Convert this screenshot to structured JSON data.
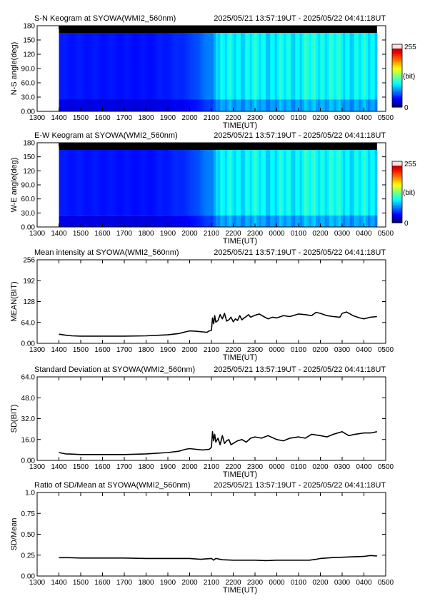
{
  "chart_data": [
    {
      "type": "heatmap",
      "id": "sn",
      "title": "S-N Keogram at SYOWA(WMI2_560nm)",
      "time_range": "2025/05/21 13:57:19UT - 2025/05/22 04:41:18UT",
      "xlabel": "TIME(UT)",
      "ylabel": "N-S angle(deg)",
      "xticks": [
        "1300",
        "1400",
        "1500",
        "1600",
        "1700",
        "1800",
        "1900",
        "2000",
        "2100",
        "2200",
        "2300",
        "0000",
        "0100",
        "0200",
        "0300",
        "0400",
        "0500"
      ],
      "yticks": [
        "0.00",
        "30.0",
        "60.0",
        "90.0",
        "120",
        "150",
        "180"
      ],
      "ylim": [
        0,
        180
      ],
      "data_start_hour": 14.0,
      "data_end_hour": 28.6,
      "colorbar": {
        "min_label": "0",
        "max_label": "255",
        "unit_label": "(bit)",
        "min": 0,
        "max": 255
      },
      "profile": [
        [
          14.0,
          45
        ],
        [
          18.0,
          40
        ],
        [
          19.3,
          50
        ],
        [
          20.0,
          60
        ],
        [
          20.6,
          85
        ],
        [
          21.0,
          95
        ],
        [
          21.2,
          140
        ],
        [
          22.5,
          150
        ],
        [
          24.0,
          145
        ],
        [
          26.0,
          160
        ],
        [
          27.0,
          150
        ],
        [
          28.6,
          145
        ]
      ]
    },
    {
      "type": "heatmap",
      "id": "ew",
      "title": "E-W Keogram at SYOWA(WMI2_560nm)",
      "time_range": "2025/05/21 13:57:19UT - 2025/05/22 04:41:18UT",
      "xlabel": "TIME(UT)",
      "ylabel": "W-E angle(deg)",
      "xticks": [
        "1300",
        "1400",
        "1500",
        "1600",
        "1700",
        "1800",
        "1900",
        "2000",
        "2100",
        "2200",
        "2300",
        "0000",
        "0100",
        "0200",
        "0300",
        "0400",
        "0500"
      ],
      "yticks": [
        "0.00",
        "30.0",
        "60.0",
        "90.0",
        "120",
        "150",
        "180"
      ],
      "ylim": [
        0,
        180
      ],
      "data_start_hour": 14.0,
      "data_end_hour": 28.6,
      "colorbar": {
        "min_label": "0",
        "max_label": "255",
        "unit_label": "(bit)",
        "min": 0,
        "max": 255
      },
      "profile": [
        [
          14.0,
          45
        ],
        [
          18.0,
          40
        ],
        [
          19.3,
          50
        ],
        [
          20.0,
          60
        ],
        [
          20.6,
          85
        ],
        [
          21.0,
          95
        ],
        [
          21.2,
          140
        ],
        [
          22.5,
          150
        ],
        [
          24.0,
          145
        ],
        [
          26.0,
          160
        ],
        [
          27.0,
          150
        ],
        [
          28.6,
          145
        ]
      ]
    },
    {
      "type": "line",
      "id": "mean",
      "title": "Mean intensity at SYOWA(WMI2_560nm)",
      "time_range": "2025/05/21 13:57:19UT - 2025/05/22 04:41:18UT",
      "xlabel": "TIME(UT)",
      "ylabel": "MEAN(BIT)",
      "xticks": [
        "1300",
        "1400",
        "1500",
        "1600",
        "1700",
        "1800",
        "1900",
        "2000",
        "2100",
        "2200",
        "2300",
        "0000",
        "0100",
        "0200",
        "0300",
        "0400",
        "0500"
      ],
      "yticks": [
        "0.00",
        "64.0",
        "128",
        "192",
        "256"
      ],
      "ylim": [
        0,
        256
      ],
      "x_hours": [
        14.0,
        14.3,
        14.6,
        15.0,
        16.0,
        17.0,
        18.0,
        19.0,
        19.5,
        19.8,
        20.0,
        20.3,
        20.6,
        20.8,
        20.9,
        21.0,
        21.05,
        21.1,
        21.15,
        21.2,
        21.3,
        21.4,
        21.5,
        21.6,
        21.7,
        21.8,
        21.9,
        22.0,
        22.1,
        22.2,
        22.3,
        22.4,
        22.5,
        22.6,
        22.7,
        22.8,
        23.0,
        23.2,
        23.4,
        23.6,
        23.8,
        24.0,
        24.3,
        24.6,
        25.0,
        25.3,
        25.6,
        25.8,
        26.0,
        26.3,
        26.6,
        26.9,
        27.0,
        27.2,
        27.5,
        27.8,
        28.0,
        28.3,
        28.6
      ],
      "values": [
        28,
        25,
        23,
        22,
        22,
        22,
        23,
        26,
        30,
        35,
        38,
        37,
        35,
        34,
        38,
        40,
        78,
        60,
        85,
        65,
        70,
        88,
        75,
        92,
        68,
        72,
        80,
        66,
        75,
        70,
        85,
        72,
        78,
        82,
        88,
        80,
        86,
        90,
        82,
        75,
        80,
        78,
        85,
        82,
        90,
        88,
        85,
        95,
        92,
        85,
        82,
        80,
        92,
        96,
        85,
        78,
        75,
        80,
        82
      ]
    },
    {
      "type": "line",
      "id": "sd",
      "title": "Standard Deviation at SYOWA(WMI2_560nm)",
      "time_range": "2025/05/21 13:57:19UT - 2025/05/22 04:41:18UT",
      "xlabel": "TIME(UT)",
      "ylabel": "SD(BIT)",
      "xticks": [
        "1300",
        "1400",
        "1500",
        "1600",
        "1700",
        "1800",
        "1900",
        "2000",
        "2100",
        "2200",
        "2300",
        "0000",
        "0100",
        "0200",
        "0300",
        "0400",
        "0500"
      ],
      "yticks": [
        "0.00",
        "16.0",
        "32.0",
        "48.0",
        "64.0"
      ],
      "ylim": [
        0,
        64
      ],
      "x_hours": [
        14.0,
        14.3,
        14.6,
        15.0,
        16.0,
        17.0,
        18.0,
        19.0,
        19.5,
        19.8,
        20.0,
        20.3,
        20.6,
        20.9,
        21.0,
        21.05,
        21.1,
        21.15,
        21.2,
        21.3,
        21.4,
        21.5,
        21.6,
        21.7,
        21.8,
        21.9,
        22.0,
        22.2,
        22.4,
        22.6,
        22.8,
        23.0,
        23.3,
        23.6,
        24.0,
        24.3,
        24.6,
        25.0,
        25.3,
        25.6,
        26.0,
        26.3,
        26.6,
        27.0,
        27.3,
        27.6,
        28.0,
        28.3,
        28.6
      ],
      "values": [
        6,
        5,
        4.8,
        4.5,
        4.5,
        4.5,
        5,
        6,
        7,
        8.5,
        9,
        8.5,
        8,
        8.5,
        10,
        22,
        15,
        20,
        14,
        17,
        12,
        19,
        13,
        15,
        16,
        12,
        13,
        15,
        16,
        14,
        17,
        18,
        17,
        19,
        16,
        15,
        17,
        18,
        17,
        20,
        19,
        18,
        20,
        22,
        19,
        20,
        21,
        21,
        22
      ]
    },
    {
      "type": "line",
      "id": "ratio",
      "title": "Ratio of SD/Mean at SYOWA(WMI2_560nm)",
      "time_range": "2025/05/21 13:57:19UT - 2025/05/22 04:41:18UT",
      "xlabel": "TIME(UT)",
      "ylabel": "SD/Mean",
      "xticks": [
        "1300",
        "1400",
        "1500",
        "1600",
        "1700",
        "1800",
        "1900",
        "2000",
        "2100",
        "2200",
        "2300",
        "0000",
        "0100",
        "0200",
        "0300",
        "0400",
        "0500"
      ],
      "yticks": [
        "0.00",
        "0.25",
        "0.50",
        "0.75",
        "1.0"
      ],
      "ylim": [
        0,
        1
      ],
      "x_hours": [
        14.0,
        14.5,
        15.0,
        16.0,
        17.0,
        18.0,
        19.0,
        20.0,
        20.5,
        21.0,
        21.1,
        21.2,
        21.5,
        22.0,
        22.5,
        23.0,
        23.5,
        24.0,
        24.5,
        25.0,
        25.5,
        25.8,
        26.0,
        26.5,
        27.0,
        27.5,
        28.0,
        28.3,
        28.6
      ],
      "values": [
        0.22,
        0.22,
        0.215,
        0.215,
        0.215,
        0.21,
        0.21,
        0.21,
        0.2,
        0.21,
        0.19,
        0.21,
        0.195,
        0.19,
        0.19,
        0.19,
        0.185,
        0.19,
        0.19,
        0.19,
        0.19,
        0.2,
        0.21,
        0.22,
        0.225,
        0.23,
        0.235,
        0.245,
        0.24
      ]
    }
  ]
}
